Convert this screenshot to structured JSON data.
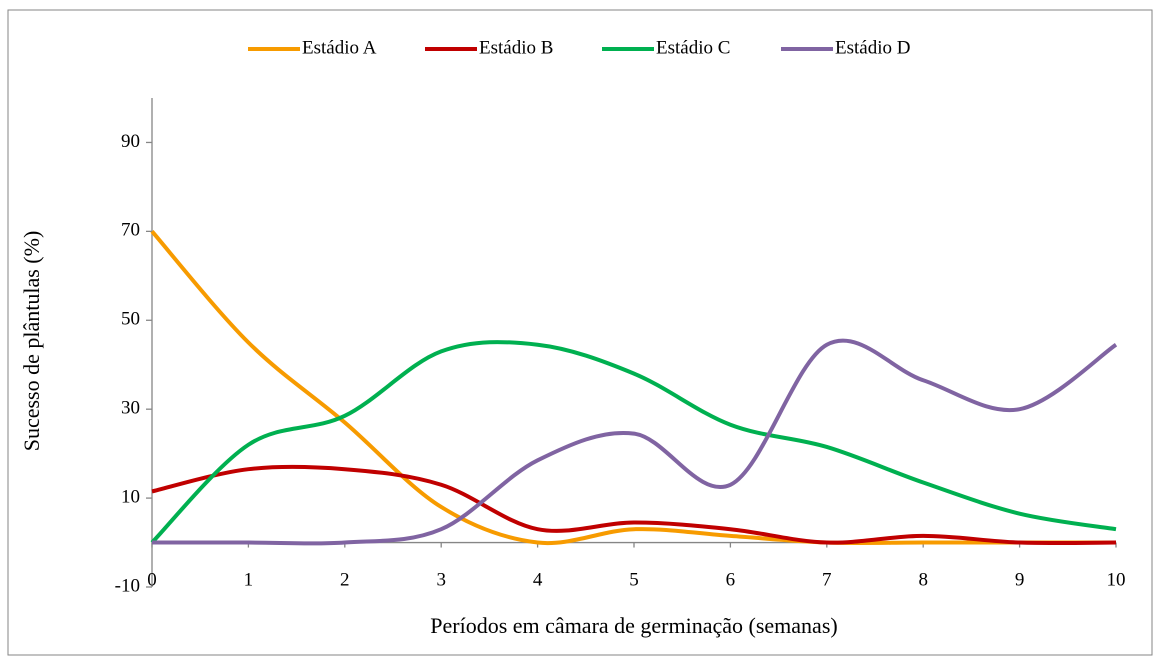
{
  "chart_data": {
    "type": "line",
    "xlabel": "Períodos em câmara de germinação (semanas)",
    "ylabel": "Sucesso de plântulas (%)",
    "x": [
      0,
      1,
      2,
      3,
      4,
      5,
      6,
      7,
      8,
      9,
      10
    ],
    "xlim": [
      0,
      10
    ],
    "xticks": [
      0,
      1,
      2,
      3,
      4,
      5,
      6,
      7,
      8,
      9,
      10
    ],
    "ylim": [
      -10,
      100
    ],
    "yticks": [
      -10,
      10,
      30,
      50,
      70,
      90
    ],
    "legend": "top",
    "series": [
      {
        "name": "Estádio A",
        "color": "#f79b00",
        "values": [
          70,
          45,
          27,
          8,
          0,
          3,
          1.5,
          0,
          0,
          0,
          0
        ]
      },
      {
        "name": "Estádio B",
        "color": "#c00000",
        "values": [
          11.5,
          16.5,
          16.5,
          13,
          3,
          4.5,
          3,
          0,
          1.5,
          0,
          0
        ]
      },
      {
        "name": "Estádio C",
        "color": "#00b050",
        "values": [
          0,
          22,
          28.5,
          43,
          44.5,
          38,
          26.5,
          21.5,
          13.5,
          6.5,
          3
        ]
      },
      {
        "name": "Estádio D",
        "color": "#8064a2",
        "values": [
          0,
          0,
          0,
          3,
          18.5,
          24.5,
          13,
          44.5,
          36.5,
          30,
          44.5
        ]
      }
    ]
  }
}
